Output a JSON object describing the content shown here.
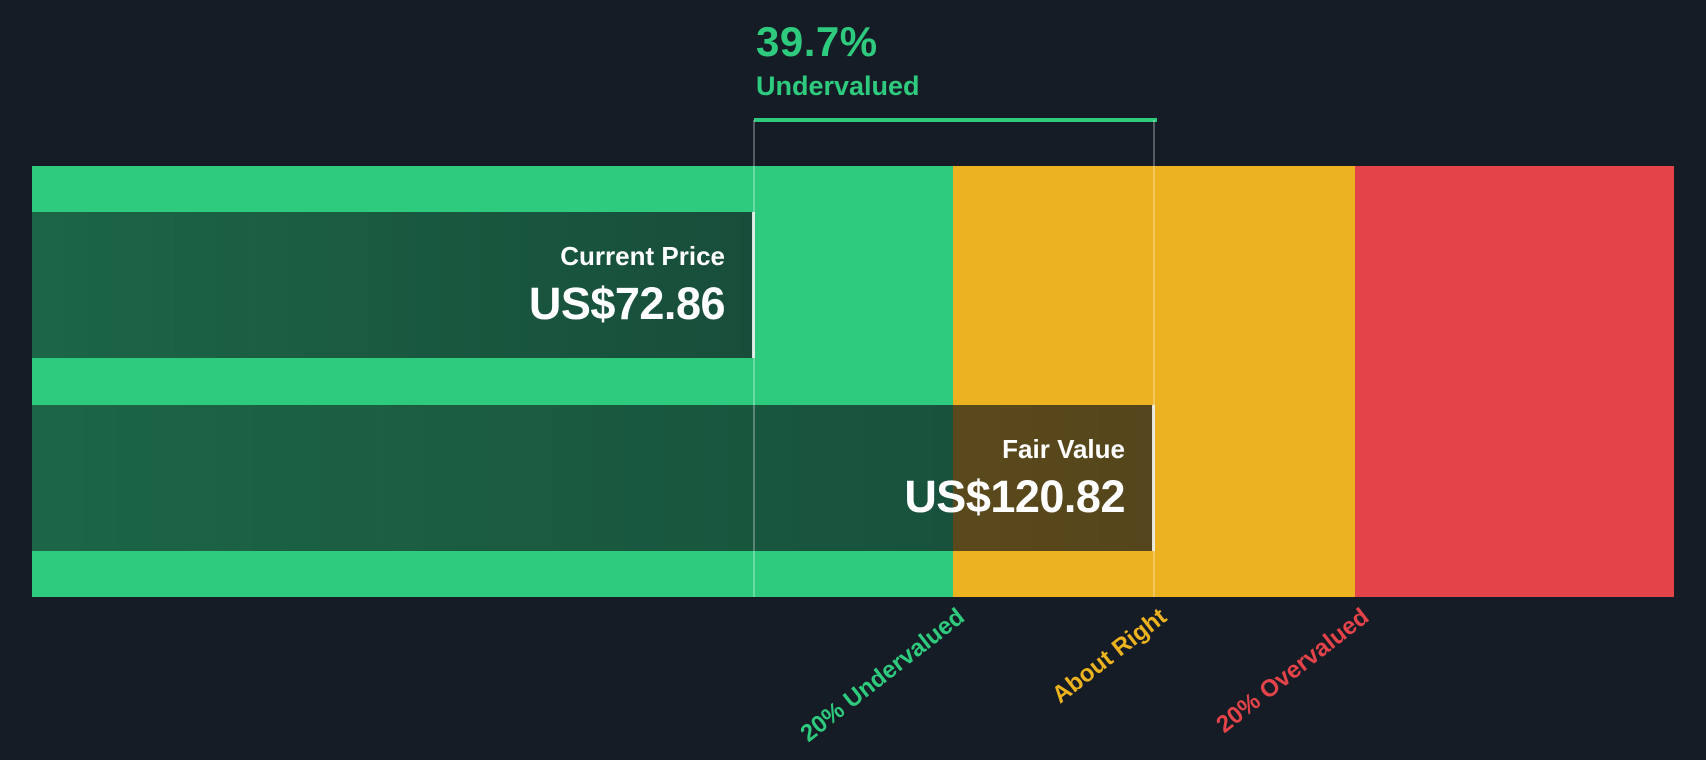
{
  "header": {
    "percent": "39.7%",
    "status": "Undervalued"
  },
  "current_price": {
    "label": "Current Price",
    "value": "US$72.86"
  },
  "fair_value": {
    "label": "Fair Value",
    "value": "US$120.82"
  },
  "zones": [
    {
      "label": "20% Undervalued",
      "color": "#2ecb7e"
    },
    {
      "label": "About Right",
      "color": "#ecb21f"
    },
    {
      "label": "20% Overvalued",
      "color": "#e34349"
    }
  ],
  "colors": {
    "background": "#151c25",
    "undervalued_green": "#2ecb7e",
    "about_right_yellow": "#ecb21f",
    "overvalued_red": "#e34349",
    "box_overlay": "rgba(13,18,26,0.62)",
    "text_white": "#ffffff"
  },
  "chart_data": {
    "type": "bar",
    "subtype": "valuation-gauge",
    "currency_prefix": "US$",
    "current_price": 72.86,
    "fair_value": 120.82,
    "discount_percent": 39.7,
    "discount_status": "Undervalued",
    "segments": [
      {
        "label": "20% Undervalued",
        "color": "#2ecb7e",
        "width_fraction": 0.561
      },
      {
        "label": "About Right",
        "color": "#ecb21f",
        "width_fraction": 0.245
      },
      {
        "label": "20% Overvalued",
        "color": "#e34349",
        "width_fraction": 0.194
      }
    ],
    "markers": {
      "current_price_fraction": 0.44,
      "fair_value_fraction": 0.684
    },
    "legend_position": "below-rotated",
    "grid": false
  }
}
